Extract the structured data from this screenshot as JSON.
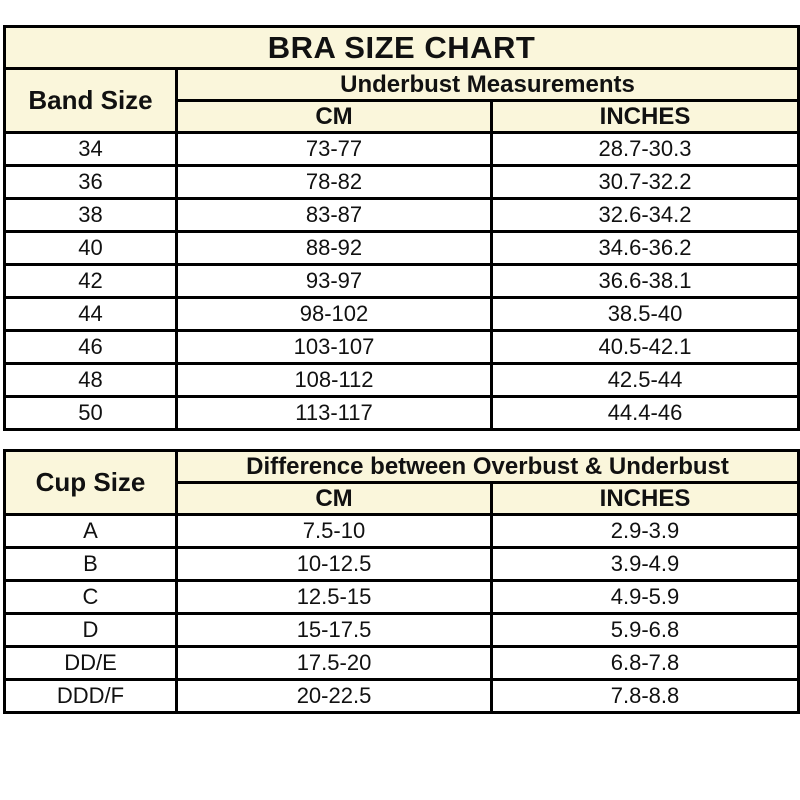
{
  "chart_data": {
    "type": "table",
    "title": "BRA SIZE CHART",
    "tables": [
      {
        "name": "band-size-table",
        "row_header": "Band Size",
        "group_header": "Underbust Measurements",
        "col_headers": [
          "CM",
          "INCHES"
        ],
        "rows": [
          [
            "34",
            "73-77",
            "28.7-30.3"
          ],
          [
            "36",
            "78-82",
            "30.7-32.2"
          ],
          [
            "38",
            "83-87",
            "32.6-34.2"
          ],
          [
            "40",
            "88-92",
            "34.6-36.2"
          ],
          [
            "42",
            "93-97",
            "36.6-38.1"
          ],
          [
            "44",
            "98-102",
            "38.5-40"
          ],
          [
            "46",
            "103-107",
            "40.5-42.1"
          ],
          [
            "48",
            "108-112",
            "42.5-44"
          ],
          [
            "50",
            "113-117",
            "44.4-46"
          ]
        ]
      },
      {
        "name": "cup-size-table",
        "row_header": "Cup Size",
        "group_header": "Difference between Overbust & Underbust",
        "col_headers": [
          "CM",
          "INCHES"
        ],
        "rows": [
          [
            "A",
            "7.5-10",
            "2.9-3.9"
          ],
          [
            "B",
            "10-12.5",
            "3.9-4.9"
          ],
          [
            "C",
            "12.5-15",
            "4.9-5.9"
          ],
          [
            "D",
            "15-17.5",
            "5.9-6.8"
          ],
          [
            "DD/E",
            "17.5-20",
            "6.8-7.8"
          ],
          [
            "DDD/F",
            "20-22.5",
            "7.8-8.8"
          ]
        ]
      }
    ]
  },
  "colors": {
    "header_bg": "#FAF6DB",
    "border": "#000000",
    "text": "#111111",
    "page_bg": "#FFFFFF"
  }
}
